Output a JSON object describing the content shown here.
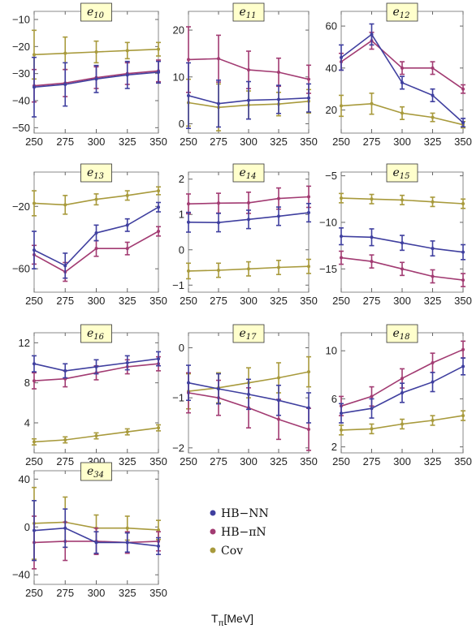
{
  "figure": {
    "xlabel": "T",
    "xlabel_sub": "π",
    "xlabel_unit": "[MeV]"
  },
  "legend": [
    {
      "label": "HB−NN",
      "color": "#3f3f9f"
    },
    {
      "label": "HB−πN",
      "color": "#a23b72"
    },
    {
      "label": "Cov",
      "color": "#a89a3c"
    }
  ],
  "colors": {
    "HB-NN": "#3f3f9f",
    "HB-piN": "#a23b72",
    "Cov": "#a89a3c",
    "badge_fill": "#ffffcc"
  },
  "chart_data": [
    {
      "type": "line",
      "title": "e10",
      "title_base": "e",
      "title_sub": "10",
      "x": [
        250,
        275,
        300,
        325,
        350
      ],
      "xticks": [
        250,
        275,
        300,
        325,
        350
      ],
      "ylim": [
        -52,
        -7
      ],
      "yticks": [
        -10,
        -20,
        -30,
        -40,
        -50
      ],
      "series": [
        {
          "name": "HB−NN",
          "values": [
            -35,
            -34,
            -32,
            -30.5,
            -29.5
          ],
          "err": [
            11,
            8,
            5,
            5,
            4
          ]
        },
        {
          "name": "HB−πN",
          "values": [
            -34.5,
            -33.5,
            -31.5,
            -30,
            -29
          ],
          "err": [
            6,
            5,
            4,
            4,
            4
          ]
        },
        {
          "name": "Cov",
          "values": [
            -23,
            -22.5,
            -22,
            -21.5,
            -21
          ],
          "err": [
            9,
            6,
            4,
            3,
            2.5
          ]
        }
      ]
    },
    {
      "type": "line",
      "title": "e11",
      "title_base": "e",
      "title_sub": "11",
      "x": [
        250,
        275,
        300,
        325,
        350
      ],
      "xticks": [
        250,
        275,
        300,
        325,
        350
      ],
      "ylim": [
        -2,
        24
      ],
      "yticks": [
        0,
        10,
        20
      ],
      "series": [
        {
          "name": "HB−NN",
          "values": [
            6,
            4.3,
            5,
            5.2,
            5.5
          ],
          "err": [
            7,
            5,
            4,
            3,
            3
          ]
        },
        {
          "name": "HB−πN",
          "values": [
            13.7,
            13.9,
            11.5,
            11,
            9.5
          ],
          "err": [
            7,
            5,
            4,
            3,
            3
          ]
        },
        {
          "name": "Cov",
          "values": [
            4.5,
            3.5,
            4,
            4.2,
            4.8
          ],
          "err": [
            5,
            5,
            3,
            2.5,
            2.5
          ]
        }
      ]
    },
    {
      "type": "line",
      "title": "e12",
      "title_base": "e",
      "title_sub": "12",
      "x": [
        250,
        275,
        300,
        325,
        350
      ],
      "xticks": [
        250,
        275,
        300,
        325,
        350
      ],
      "ylim": [
        9,
        67
      ],
      "yticks": [
        20,
        40,
        60
      ],
      "series": [
        {
          "name": "HB−NN",
          "values": [
            45,
            56,
            33,
            27,
            14
          ],
          "err": [
            6,
            5,
            3,
            3,
            2
          ]
        },
        {
          "name": "HB−πN",
          "values": [
            43,
            53,
            40,
            40,
            30
          ],
          "err": [
            4,
            4,
            3,
            3,
            2
          ]
        },
        {
          "name": "Cov",
          "values": [
            22,
            23,
            18.5,
            16.5,
            13
          ],
          "err": [
            5,
            5,
            3,
            2,
            1.5
          ]
        }
      ]
    },
    {
      "type": "line",
      "title": "e13",
      "title_base": "e",
      "title_sub": "13",
      "x": [
        250,
        275,
        300,
        325,
        350
      ],
      "xticks": [
        250,
        275,
        300,
        325,
        350
      ],
      "ylim": [
        -75,
        2
      ],
      "yticks": [
        -20,
        -60
      ],
      "series": [
        {
          "name": "HB−NN",
          "values": [
            -48,
            -58,
            -37,
            -32,
            -20.5
          ],
          "err": [
            12,
            8,
            5,
            4,
            3
          ]
        },
        {
          "name": "HB−πN",
          "values": [
            -51,
            -62,
            -47,
            -47,
            -36
          ],
          "err": [
            6,
            6,
            5,
            4,
            3
          ]
        },
        {
          "name": "Cov",
          "values": [
            -18,
            -19,
            -15.5,
            -13,
            -10
          ],
          "err": [
            8,
            6,
            3.5,
            3,
            2.5
          ]
        }
      ]
    },
    {
      "type": "line",
      "title": "e14",
      "title_base": "e",
      "title_sub": "14",
      "x": [
        250,
        275,
        300,
        325,
        350
      ],
      "xticks": [
        250,
        275,
        300,
        325,
        350
      ],
      "ylim": [
        -1.2,
        2.2
      ],
      "yticks": [
        -1,
        0,
        1,
        2
      ],
      "series": [
        {
          "name": "HB−NN",
          "values": [
            0.78,
            0.77,
            0.86,
            0.95,
            1.05
          ],
          "err": [
            0.28,
            0.26,
            0.26,
            0.26,
            0.26
          ]
        },
        {
          "name": "HB−πN",
          "values": [
            1.3,
            1.32,
            1.33,
            1.45,
            1.5
          ],
          "err": [
            0.28,
            0.28,
            0.3,
            0.3,
            0.3
          ]
        },
        {
          "name": "Cov",
          "values": [
            -0.6,
            -0.58,
            -0.54,
            -0.5,
            -0.47
          ],
          "err": [
            0.22,
            0.2,
            0.2,
            0.2,
            0.2
          ]
        }
      ]
    },
    {
      "type": "line",
      "title": "e15",
      "title_base": "e",
      "title_sub": "15",
      "x": [
        250,
        275,
        300,
        325,
        350
      ],
      "xticks": [
        250,
        275,
        300,
        325,
        350
      ],
      "ylim": [
        -17.5,
        -4.6
      ],
      "yticks": [
        -5,
        -10,
        -15
      ],
      "series": [
        {
          "name": "HB−NN",
          "values": [
            -11.5,
            -11.6,
            -12.2,
            -12.8,
            -13.2
          ],
          "err": [
            0.9,
            0.9,
            0.8,
            0.8,
            0.8
          ]
        },
        {
          "name": "HB−πN",
          "values": [
            -13.8,
            -14.2,
            -15,
            -15.8,
            -16.2
          ],
          "err": [
            0.7,
            0.7,
            0.7,
            0.7,
            0.7
          ]
        },
        {
          "name": "Cov",
          "values": [
            -7.4,
            -7.5,
            -7.6,
            -7.8,
            -8
          ],
          "err": [
            0.5,
            0.5,
            0.5,
            0.5,
            0.5
          ]
        }
      ]
    },
    {
      "type": "line",
      "title": "e16",
      "title_base": "e",
      "title_sub": "16",
      "x": [
        250,
        275,
        300,
        325,
        350
      ],
      "xticks": [
        250,
        275,
        300,
        325,
        350
      ],
      "ylim": [
        1,
        13
      ],
      "yticks": [
        4,
        8,
        12
      ],
      "series": [
        {
          "name": "HB−NN",
          "values": [
            9.9,
            9.2,
            9.6,
            10,
            10.4
          ],
          "err": [
            0.8,
            0.7,
            0.7,
            0.7,
            0.7
          ]
        },
        {
          "name": "HB−πN",
          "values": [
            8.2,
            8.4,
            9,
            9.6,
            9.9
          ],
          "err": [
            0.8,
            0.8,
            0.7,
            0.7,
            0.7
          ]
        },
        {
          "name": "Cov",
          "values": [
            2.1,
            2.3,
            2.7,
            3.1,
            3.5
          ],
          "err": [
            0.3,
            0.3,
            0.3,
            0.3,
            0.3
          ]
        }
      ]
    },
    {
      "type": "line",
      "title": "e17",
      "title_base": "e",
      "title_sub": "17",
      "x": [
        250,
        275,
        300,
        325,
        350
      ],
      "xticks": [
        250,
        275,
        300,
        325,
        350
      ],
      "ylim": [
        -2.1,
        0.3
      ],
      "yticks": [
        0,
        -1,
        -2
      ],
      "series": [
        {
          "name": "HB−NN",
          "values": [
            -0.7,
            -0.82,
            -0.93,
            -1.05,
            -1.2
          ],
          "err": [
            0.35,
            0.3,
            0.3,
            0.3,
            0.3
          ]
        },
        {
          "name": "HB−πN",
          "values": [
            -0.9,
            -1.0,
            -1.2,
            -1.43,
            -1.63
          ],
          "err": [
            0.4,
            0.35,
            0.4,
            0.4,
            0.42
          ]
        },
        {
          "name": "Cov",
          "values": [
            -0.87,
            -0.8,
            -0.7,
            -0.6,
            -0.48
          ],
          "err": [
            0.35,
            0.3,
            0.3,
            0.3,
            0.3
          ]
        }
      ]
    },
    {
      "type": "line",
      "title": "e18",
      "title_base": "e",
      "title_sub": "18",
      "x": [
        250,
        275,
        300,
        325,
        350
      ],
      "xticks": [
        250,
        275,
        300,
        325,
        350
      ],
      "ylim": [
        1.5,
        11.5
      ],
      "yticks": [
        2,
        6,
        10
      ],
      "series": [
        {
          "name": "HB−NN",
          "values": [
            4.8,
            5.2,
            6.5,
            7.4,
            8.7
          ],
          "err": [
            0.8,
            0.8,
            0.8,
            0.8,
            0.7
          ]
        },
        {
          "name": "HB−πN",
          "values": [
            5.4,
            6.2,
            7.7,
            9,
            10.1
          ],
          "err": [
            0.8,
            0.8,
            0.8,
            0.8,
            0.7
          ]
        },
        {
          "name": "Cov",
          "values": [
            3.4,
            3.5,
            3.9,
            4.2,
            4.6
          ],
          "err": [
            0.4,
            0.4,
            0.4,
            0.4,
            0.4
          ]
        }
      ]
    },
    {
      "type": "line",
      "title": "e34",
      "title_base": "e",
      "title_sub": "34",
      "x": [
        250,
        275,
        300,
        325,
        350
      ],
      "xticks": [
        250,
        275,
        300,
        325,
        350
      ],
      "ylim": [
        -48,
        47
      ],
      "yticks": [
        40,
        0,
        -40
      ],
      "series": [
        {
          "name": "HB−NN",
          "values": [
            -3,
            -1,
            -13,
            -13,
            -16
          ],
          "err": [
            25,
            16,
            9,
            8,
            7
          ]
        },
        {
          "name": "HB−πN",
          "values": [
            -13,
            -12,
            -12,
            -13,
            -12
          ],
          "err": [
            22,
            16,
            11,
            9,
            8
          ]
        },
        {
          "name": "Cov",
          "values": [
            3,
            4,
            -1,
            -1,
            -2.5
          ],
          "err": [
            30,
            21,
            11,
            10,
            8
          ]
        }
      ]
    }
  ]
}
